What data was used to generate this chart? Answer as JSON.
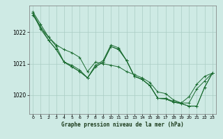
{
  "title": "Graphe pression niveau de la mer (hPa)",
  "bg_color": "#ceeae4",
  "grid_color": "#aaccc4",
  "line_color": "#1a6b30",
  "xlim": [
    -0.5,
    23.5
  ],
  "ylim": [
    1019.4,
    1022.85
  ],
  "yticks": [
    1020,
    1021,
    1022
  ],
  "xticks": [
    0,
    1,
    2,
    3,
    4,
    5,
    6,
    7,
    8,
    9,
    10,
    11,
    12,
    13,
    14,
    15,
    16,
    17,
    18,
    19,
    20,
    21,
    22,
    23
  ],
  "line1": [
    1022.65,
    1022.25,
    1021.85,
    1021.6,
    1021.45,
    1021.35,
    1021.2,
    1020.75,
    1021.05,
    1021.0,
    1020.95,
    1020.9,
    1020.75,
    1020.65,
    1020.55,
    1020.4,
    1020.1,
    1020.05,
    1019.85,
    1019.75,
    1019.75,
    1020.2,
    1020.45,
    1020.7
  ],
  "line2": [
    1022.55,
    1022.15,
    1021.85,
    1021.55,
    1021.05,
    1020.95,
    1020.8,
    1020.55,
    1020.95,
    1021.1,
    1021.6,
    1021.5,
    1021.1,
    1020.6,
    1020.5,
    1020.3,
    1019.9,
    1019.9,
    1019.8,
    1019.75,
    1019.95,
    1020.35,
    1020.6,
    1020.7
  ],
  "line3": [
    1022.6,
    1022.1,
    1021.75,
    1021.45,
    1021.05,
    1020.9,
    1020.75,
    1020.55,
    1020.9,
    1021.05,
    1021.55,
    1021.45,
    1021.1,
    1020.6,
    1020.5,
    1020.3,
    1019.9,
    1019.88,
    1019.78,
    1019.73,
    1019.65,
    1019.65,
    1020.25,
    1020.7
  ],
  "line4": [
    1022.6,
    null,
    1021.75,
    1021.45,
    1021.05,
    1020.9,
    1020.75,
    1020.55,
    1020.9,
    1021.05,
    1021.55,
    1021.45,
    1021.1,
    1020.6,
    1020.5,
    1020.3,
    1019.9,
    1019.88,
    1019.78,
    1019.73,
    1019.65,
    1019.65,
    1020.25,
    1020.7
  ]
}
